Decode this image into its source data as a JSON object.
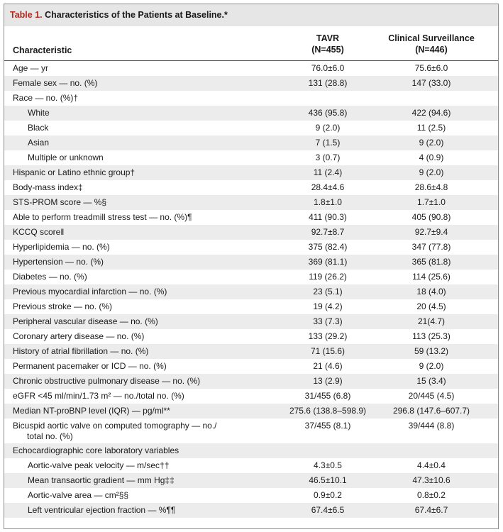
{
  "table": {
    "title_number": "Table 1.",
    "title_text": "Characteristics of the Patients at Baseline.*",
    "col_characteristic": "Characteristic",
    "col_tavr_line1": "TAVR",
    "col_tavr_line2": "(N=455)",
    "col_cs_line1": "Clinical Surveillance",
    "col_cs_line2": "(N=446)",
    "rows": [
      {
        "label": "Age — yr",
        "tavr": "76.0±6.0",
        "cs": "75.6±6.0",
        "indent": false
      },
      {
        "label": "Female sex — no. (%)",
        "tavr": "131 (28.8)",
        "cs": "147 (33.0)",
        "indent": false
      },
      {
        "label": "Race — no. (%)†",
        "tavr": "",
        "cs": "",
        "indent": false
      },
      {
        "label": "White",
        "tavr": "436 (95.8)",
        "cs": "422 (94.6)",
        "indent": true
      },
      {
        "label": "Black",
        "tavr": "9 (2.0)",
        "cs": "11 (2.5)",
        "indent": true
      },
      {
        "label": "Asian",
        "tavr": "7 (1.5)",
        "cs": "9 (2.0)",
        "indent": true
      },
      {
        "label": "Multiple or unknown",
        "tavr": "3 (0.7)",
        "cs": "4 (0.9)",
        "indent": true
      },
      {
        "label": "Hispanic or Latino ethnic group†",
        "tavr": "11 (2.4)",
        "cs": "9 (2.0)",
        "indent": false
      },
      {
        "label": "Body-mass index‡",
        "tavr": "28.4±4.6",
        "cs": "28.6±4.8",
        "indent": false
      },
      {
        "label": "STS-PROM score — %§",
        "tavr": "1.8±1.0",
        "cs": "1.7±1.0",
        "indent": false
      },
      {
        "label": "Able to perform treadmill stress test — no. (%)¶",
        "tavr": "411 (90.3)",
        "cs": "405 (90.8)",
        "indent": false
      },
      {
        "label": "KCCQ score‖",
        "tavr": "92.7±8.7",
        "cs": "92.7±9.4",
        "indent": false
      },
      {
        "label": "Hyperlipidemia — no. (%)",
        "tavr": "375 (82.4)",
        "cs": "347 (77.8)",
        "indent": false
      },
      {
        "label": "Hypertension — no. (%)",
        "tavr": "369 (81.1)",
        "cs": "365 (81.8)",
        "indent": false
      },
      {
        "label": "Diabetes — no. (%)",
        "tavr": "119 (26.2)",
        "cs": "114 (25.6)",
        "indent": false
      },
      {
        "label": "Previous myocardial infarction — no. (%)",
        "tavr": "23 (5.1)",
        "cs": "18 (4.0)",
        "indent": false
      },
      {
        "label": "Previous stroke — no. (%)",
        "tavr": "19 (4.2)",
        "cs": "20 (4.5)",
        "indent": false
      },
      {
        "label": "Peripheral vascular disease — no. (%)",
        "tavr": "33 (7.3)",
        "cs": "21(4.7)",
        "indent": false
      },
      {
        "label": "Coronary artery disease — no. (%)",
        "tavr": "133 (29.2)",
        "cs": "113 (25.3)",
        "indent": false
      },
      {
        "label": "History of atrial fibrillation — no. (%)",
        "tavr": "71 (15.6)",
        "cs": "59 (13.2)",
        "indent": false
      },
      {
        "label": "Permanent pacemaker or ICD — no. (%)",
        "tavr": "21 (4.6)",
        "cs": "9 (2.0)",
        "indent": false
      },
      {
        "label": "Chronic obstructive pulmonary disease — no. (%)",
        "tavr": "13 (2.9)",
        "cs": "15 (3.4)",
        "indent": false
      },
      {
        "label": "eGFR <45 ml/min/1.73 m² — no./total no. (%)",
        "tavr": "31/455 (6.8)",
        "cs": "20/445 (4.5)",
        "indent": false
      },
      {
        "label": "Median NT-proBNP level (IQR) — pg/ml**",
        "tavr": "275.6 (138.8–598.9)",
        "cs": "296.8 (147.6–607.7)",
        "indent": false
      },
      {
        "label": "Bicuspid aortic valve on computed tomography — no./",
        "label2": "total no. (%)",
        "tavr": "37/455 (8.1)",
        "cs": "39/444 (8.8)",
        "indent": false
      },
      {
        "label": "Echocardiographic core laboratory variables",
        "tavr": "",
        "cs": "",
        "indent": false
      },
      {
        "label": "Aortic-valve peak velocity — m/sec††",
        "tavr": "4.3±0.5",
        "cs": "4.4±0.4",
        "indent": true
      },
      {
        "label": "Mean transaortic gradient — mm Hg‡‡",
        "tavr": "46.5±10.1",
        "cs": "47.3±10.6",
        "indent": true
      },
      {
        "label": "Aortic-valve area — cm²§§",
        "tavr": "0.9±0.2",
        "cs": "0.8±0.2",
        "indent": true
      },
      {
        "label": "Left ventricular ejection fraction — %¶¶",
        "tavr": "67.4±6.5",
        "cs": "67.4±6.7",
        "indent": true
      }
    ]
  },
  "colors": {
    "title_number": "#b5281e",
    "title_bar": "#e6e6e6",
    "stripe": "#ececec"
  }
}
